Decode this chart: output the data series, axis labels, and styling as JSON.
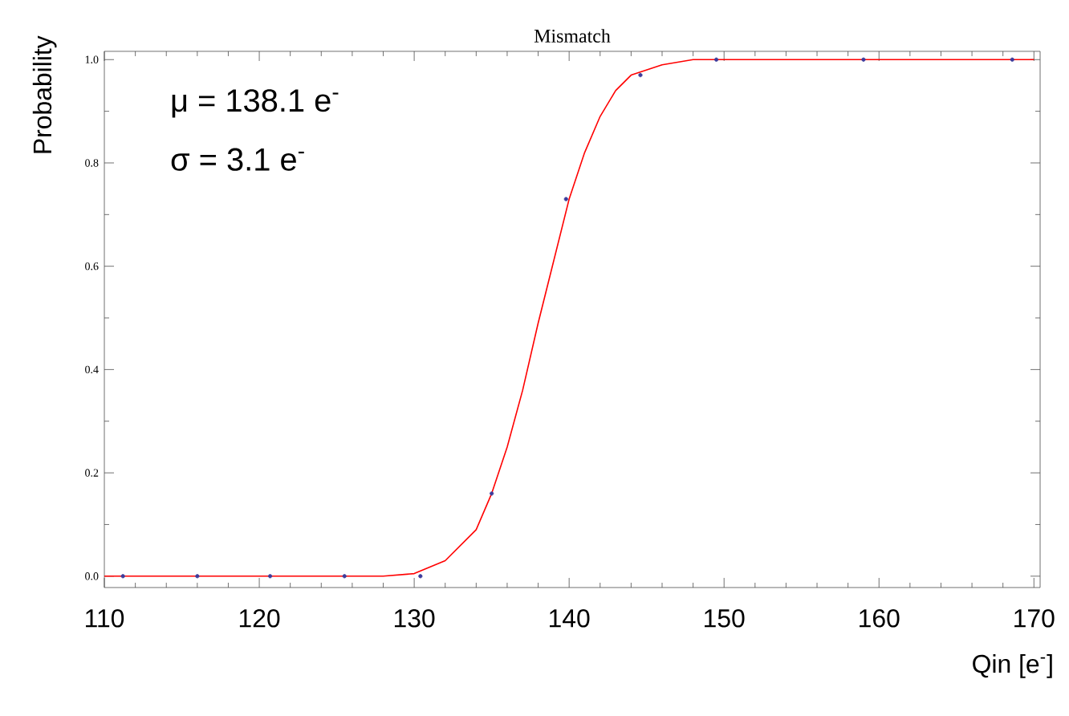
{
  "chart_data": {
    "type": "scatter",
    "title": "Mismatch",
    "xlabel": "Qin [e$^{-}$]",
    "ylabel": "Probability",
    "annotations": [
      "μ = 138.1 e$^{-}$",
      "σ = 3.1 e$^{-}$"
    ],
    "xlim": [
      110,
      170.4
    ],
    "ylim": [
      -0.022,
      1.016
    ],
    "xticks": [
      110,
      120,
      130,
      140,
      150,
      160,
      170
    ],
    "yticks": [
      {
        "value": 0,
        "label": "0.0"
      },
      {
        "value": 0.2,
        "label": "0.2"
      },
      {
        "value": 0.4,
        "label": "0.4"
      },
      {
        "value": 0.6,
        "label": "0.6"
      },
      {
        "value": 0.8,
        "label": "0.8"
      },
      {
        "value": 1,
        "label": "1.0"
      }
    ],
    "grid": false,
    "series": [
      {
        "marker": "circle",
        "color": "#3c3c9c",
        "x": [
          111.2,
          116,
          120.7,
          125.5,
          130.4,
          135,
          139.8,
          144.6,
          149.5,
          159,
          168.6
        ],
        "values": [
          0,
          0,
          0,
          0,
          0,
          0.16,
          0.73,
          0.97,
          1,
          1,
          1
        ]
      },
      {
        "type": "line",
        "marker": "none",
        "line_style": "solid",
        "color": "#ff0000",
        "x": [
          110,
          128,
          130,
          132,
          134,
          135,
          136,
          137,
          138,
          139,
          140,
          141,
          142,
          143,
          144,
          146,
          148,
          170
        ],
        "values": [
          0,
          0,
          0.005,
          0.03,
          0.09,
          0.16,
          0.25,
          0.36,
          0.49,
          0.61,
          0.73,
          0.82,
          0.89,
          0.94,
          0.97,
          0.99,
          1,
          1
        ]
      }
    ]
  }
}
